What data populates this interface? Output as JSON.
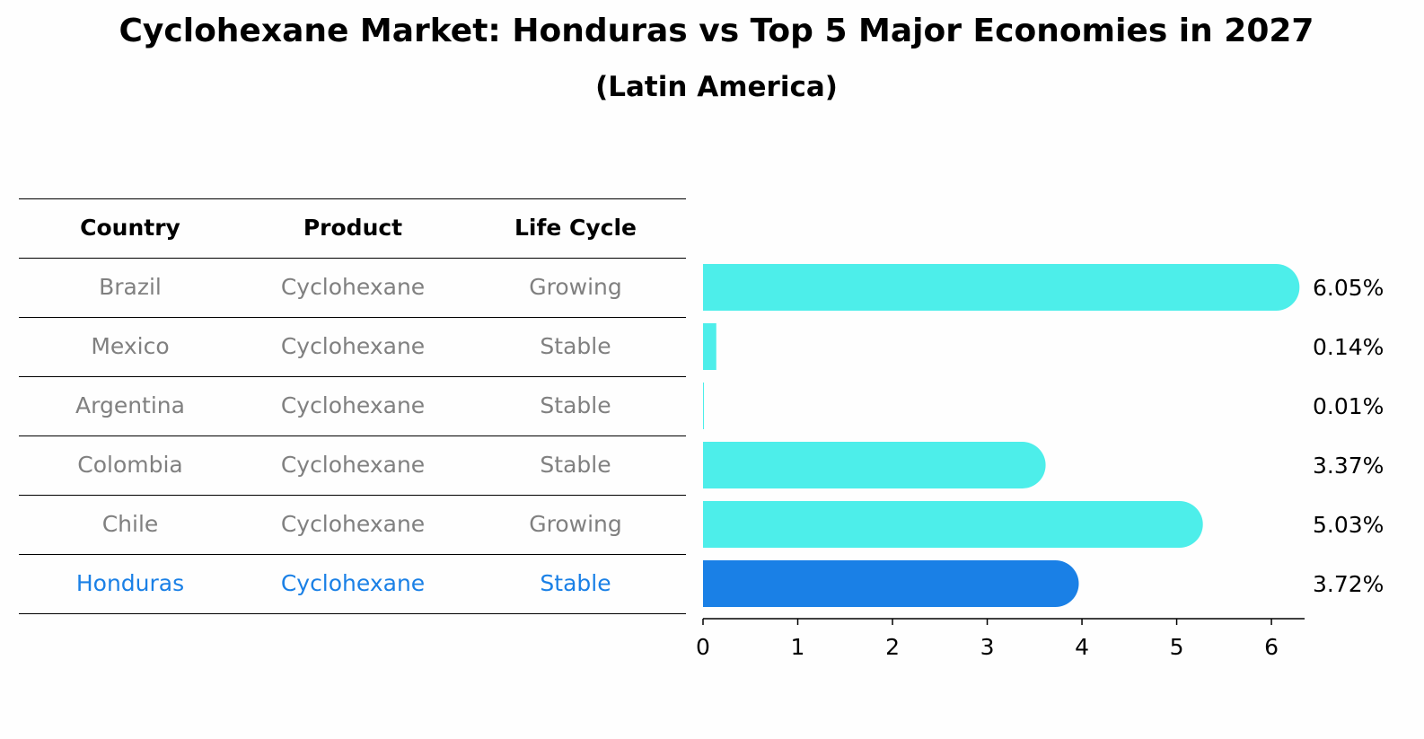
{
  "title": "Cyclohexane Market: Honduras vs Top 5 Major Economies in 2027",
  "subtitle": "(Latin America)",
  "table": {
    "headers": [
      "Country",
      "Product",
      "Life Cycle"
    ],
    "rows": [
      [
        "Brazil",
        "Cyclohexane",
        "Growing"
      ],
      [
        "Mexico",
        "Cyclohexane",
        "Stable"
      ],
      [
        "Argentina",
        "Cyclohexane",
        "Stable"
      ],
      [
        "Colombia",
        "Cyclohexane",
        "Stable"
      ],
      [
        "Chile",
        "Cyclohexane",
        "Growing"
      ],
      [
        "Honduras",
        "Cyclohexane",
        "Stable"
      ]
    ],
    "highlight_row": 5
  },
  "colors": {
    "bar": "#4deeea",
    "highlight": "#1a80e6",
    "row_text": "#808080"
  },
  "chart_data": {
    "type": "bar",
    "orientation": "horizontal",
    "categories": [
      "Brazil",
      "Mexico",
      "Argentina",
      "Colombia",
      "Chile",
      "Honduras"
    ],
    "values": [
      6.05,
      0.14,
      0.01,
      3.37,
      5.03,
      3.72
    ],
    "value_labels": [
      "6.05%",
      "0.14%",
      "0.01%",
      "3.37%",
      "5.03%",
      "3.72%"
    ],
    "highlight_index": 5,
    "xlim": [
      0,
      6.35
    ],
    "xticks": [
      0,
      1,
      2,
      3,
      4,
      5,
      6
    ],
    "xlabel": "",
    "ylabel": "",
    "grid": false
  }
}
